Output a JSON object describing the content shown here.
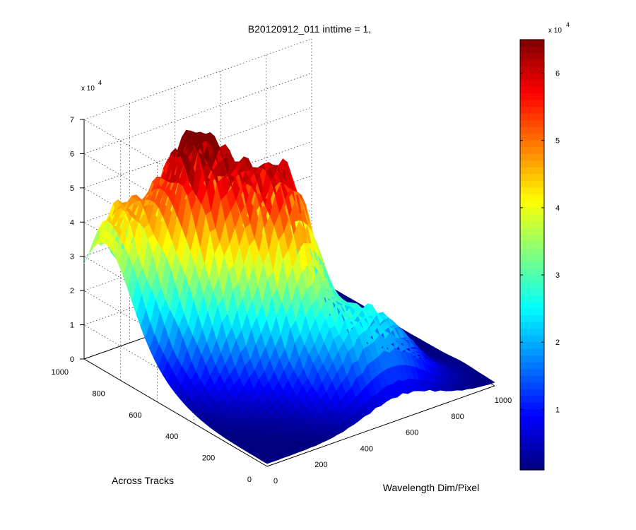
{
  "chart_data": {
    "type": "surface3d",
    "title": "B20120912_011 inttime = 1,",
    "xlabel": "Wavelength Dim/Pixel",
    "ylabel": "Across Tracks",
    "zlabel": "",
    "z_exponent_label": "x 10",
    "z_exponent": "4",
    "x_ticks": [
      "0",
      "200",
      "400",
      "600",
      "800",
      "1000"
    ],
    "y_ticks": [
      "0",
      "200",
      "400",
      "600",
      "800",
      "1000"
    ],
    "z_ticks": [
      "0",
      "1",
      "2",
      "3",
      "4",
      "5",
      "6",
      "7"
    ],
    "xlim": [
      0,
      1000
    ],
    "ylim": [
      0,
      1000
    ],
    "zlim": [
      0,
      7
    ],
    "grid": true,
    "colormap": "jet",
    "colorbar": {
      "ticks": [
        "1",
        "2",
        "3",
        "4",
        "5",
        "6"
      ],
      "exponent_label": "x 10",
      "exponent": "4",
      "range": [
        0.1,
        6.5
      ]
    },
    "peaks": [
      {
        "x": 250,
        "y": 700,
        "height": 6.6
      },
      {
        "x": 450,
        "y": 450,
        "height": 5.4
      },
      {
        "x": 600,
        "y": 150,
        "height": 2.3
      },
      {
        "x": 40,
        "y": 900,
        "height": 3.6
      }
    ]
  }
}
